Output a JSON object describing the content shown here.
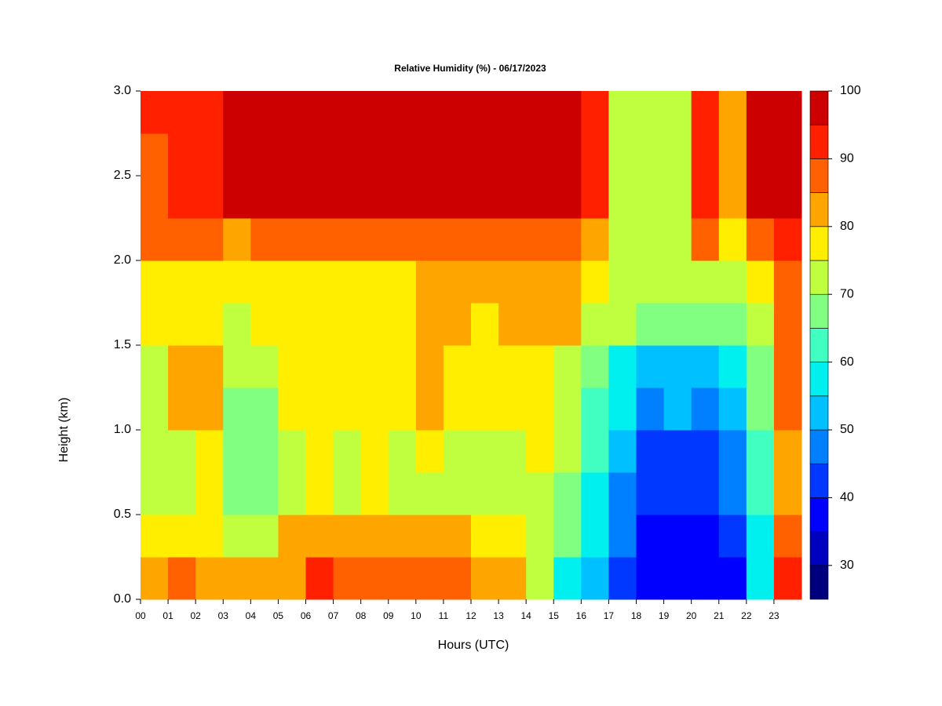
{
  "chart_data": {
    "type": "heatmap",
    "title": "Relative Humidity (%) - 06/17/2023",
    "xlabel": "Hours (UTC)",
    "ylabel": "Height (km)",
    "xlim": [
      0,
      24
    ],
    "ylim": [
      0,
      3
    ],
    "xticks": [
      {
        "value": 0,
        "label": "00"
      },
      {
        "value": 1,
        "label": "01"
      },
      {
        "value": 2,
        "label": "02"
      },
      {
        "value": 3,
        "label": "03"
      },
      {
        "value": 4,
        "label": "04"
      },
      {
        "value": 5,
        "label": "05"
      },
      {
        "value": 6,
        "label": "06"
      },
      {
        "value": 7,
        "label": "07"
      },
      {
        "value": 8,
        "label": "08"
      },
      {
        "value": 9,
        "label": "09"
      },
      {
        "value": 10,
        "label": "10"
      },
      {
        "value": 11,
        "label": "11"
      },
      {
        "value": 12,
        "label": "12"
      },
      {
        "value": 13,
        "label": "13"
      },
      {
        "value": 14,
        "label": "14"
      },
      {
        "value": 15,
        "label": "15"
      },
      {
        "value": 16,
        "label": "16"
      },
      {
        "value": 17,
        "label": "17"
      },
      {
        "value": 18,
        "label": "18"
      },
      {
        "value": 19,
        "label": "19"
      },
      {
        "value": 20,
        "label": "20"
      },
      {
        "value": 21,
        "label": "21"
      },
      {
        "value": 22,
        "label": "22"
      },
      {
        "value": 23,
        "label": "23"
      }
    ],
    "yticks": [
      {
        "value": 0,
        "label": "0.0"
      },
      0.5,
      {
        "value": 1,
        "label": "1.0"
      },
      1.5,
      {
        "value": 2,
        "label": "2.0"
      },
      2.5,
      {
        "value": 3,
        "label": "3.0"
      }
    ],
    "x": [
      0.5,
      1.5,
      2.5,
      3.5,
      4.5,
      5.5,
      6.5,
      7.5,
      8.5,
      9.5,
      10.5,
      11.5,
      12.5,
      13.5,
      14.5,
      15.5,
      16.5,
      17.5,
      18.5,
      19.5,
      20.5,
      21.5,
      22.5,
      23.5
    ],
    "y": [
      0.125,
      0.375,
      0.625,
      0.875,
      1.125,
      1.375,
      1.625,
      1.875,
      2.125,
      2.375,
      2.625,
      2.875
    ],
    "z": [
      [
        80,
        85,
        84,
        80,
        80,
        83,
        90,
        86,
        88,
        87,
        87,
        87,
        84,
        80,
        70,
        58,
        52,
        42,
        35,
        35,
        36,
        38,
        55,
        90
      ],
      [
        75,
        78,
        78,
        73,
        70,
        80,
        84,
        80,
        82,
        80,
        80,
        80,
        78,
        76,
        74,
        65,
        55,
        45,
        38,
        38,
        38,
        42,
        58,
        86
      ],
      [
        70,
        72,
        75,
        68,
        66,
        72,
        76,
        73,
        75,
        72,
        74,
        73,
        72,
        73,
        74,
        68,
        57,
        48,
        40,
        42,
        40,
        45,
        60,
        80
      ],
      [
        71,
        74,
        76,
        67,
        67,
        74,
        77,
        74,
        76,
        73,
        76,
        74,
        73,
        74,
        75,
        70,
        60,
        50,
        42,
        44,
        42,
        47,
        62,
        84
      ],
      [
        72,
        80,
        80,
        68,
        68,
        76,
        78,
        75,
        78,
        75,
        80,
        77,
        75,
        75,
        77,
        72,
        62,
        55,
        48,
        50,
        48,
        52,
        65,
        88
      ],
      [
        73,
        81,
        80,
        70,
        72,
        77,
        78,
        76,
        78,
        76,
        81,
        78,
        76,
        76,
        78,
        74,
        66,
        58,
        52,
        54,
        52,
        56,
        68,
        88
      ],
      [
        77,
        79,
        78,
        74,
        77,
        78,
        79,
        78,
        79,
        78,
        80,
        80,
        79,
        80,
        80,
        80,
        74,
        70,
        66,
        66,
        68,
        68,
        74,
        88
      ],
      [
        78,
        78,
        78,
        76,
        78,
        79,
        79,
        78,
        79,
        79,
        81,
        81,
        80,
        81,
        80,
        81,
        78,
        72,
        70,
        70,
        72,
        72,
        76,
        89
      ],
      [
        85,
        86,
        86,
        84,
        85,
        86,
        86,
        86,
        87,
        86,
        87,
        86,
        86,
        86,
        86,
        86,
        84,
        74,
        72,
        72,
        86,
        78,
        86,
        92
      ],
      [
        88,
        90,
        92,
        95,
        96,
        97,
        97,
        97,
        97,
        97,
        97,
        97,
        97,
        97,
        95,
        95,
        92,
        72,
        72,
        74,
        92,
        82,
        95,
        97
      ],
      [
        89,
        90,
        92,
        96,
        97,
        97,
        97,
        97,
        97,
        97,
        97,
        97,
        97,
        97,
        96,
        95,
        92,
        72,
        72,
        74,
        92,
        80,
        95,
        97
      ],
      [
        90,
        91,
        92,
        96,
        97,
        97,
        97,
        97,
        97,
        97,
        97,
        97,
        97,
        97,
        96,
        95,
        93,
        72,
        72,
        74,
        92,
        80,
        95,
        97
      ]
    ],
    "levels": [
      25,
      30,
      35,
      40,
      45,
      50,
      55,
      60,
      65,
      70,
      75,
      80,
      85,
      90,
      95,
      100
    ],
    "colors": [
      "#00007f",
      "#0000bf",
      "#0000ff",
      "#0038ff",
      "#0080ff",
      "#00c0ff",
      "#00f0f0",
      "#40ffc0",
      "#80ff80",
      "#c0ff40",
      "#ffee00",
      "#ffa500",
      "#ff6000",
      "#ff2000",
      "#cc0000",
      "#7f0000"
    ],
    "colorbar_ticks": [
      30,
      40,
      50,
      60,
      70,
      80,
      90,
      100
    ]
  }
}
